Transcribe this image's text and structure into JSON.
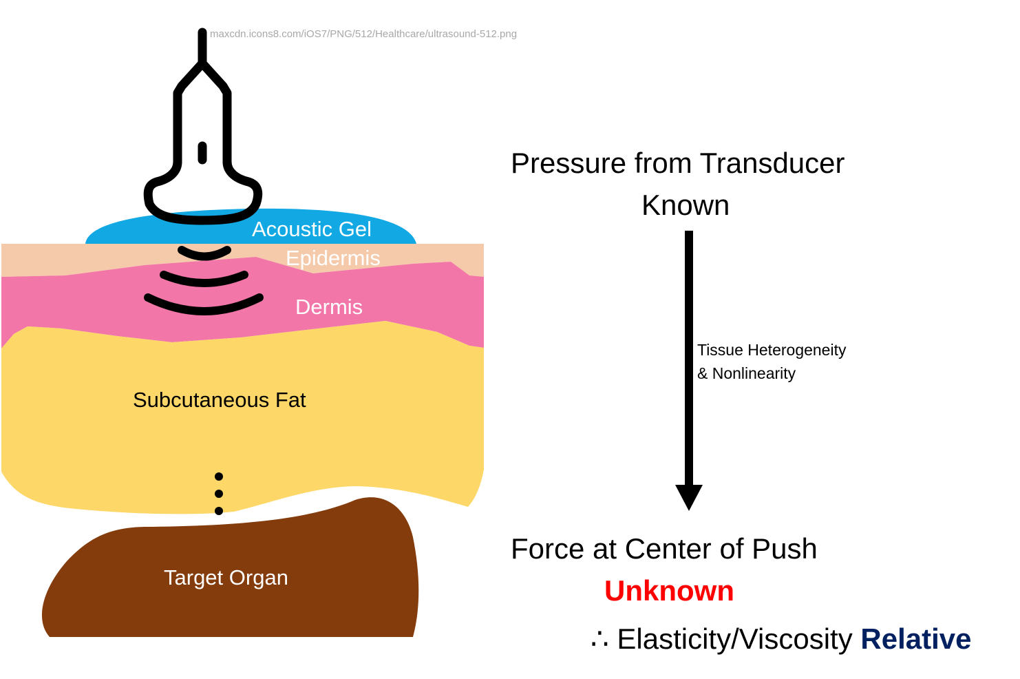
{
  "image_credit": "maxcdn.icons8.com/iOS7/PNG/512/Healthcare/ultrasound-512.png",
  "layers": {
    "acoustic_gel": "Acoustic Gel",
    "epidermis": "Epidermis",
    "dermis": "Dermis",
    "subcutaneous_fat": "Subcutaneous Fat",
    "target_organ": "Target Organ"
  },
  "pressure": {
    "title": "Pressure from Transducer",
    "status": "Known"
  },
  "arrow": {
    "label_line1": "Tissue Heterogeneity",
    "label_line2": "& Nonlinearity"
  },
  "force": {
    "title": "Force at Center of Push",
    "status": "Unknown"
  },
  "conclusion": {
    "prefix": "∴ Elasticity/Viscosity ",
    "emphasis": "Relative"
  },
  "icons": {
    "probe": "ultrasound-transducer-icon",
    "waves": "ultrasound-wave-icon",
    "continuation": "vertical-ellipsis-icon",
    "flow": "down-arrow-icon"
  },
  "colors": {
    "acoustic_gel": "#12A8E3",
    "epidermis": "#F5CAAB",
    "dermis": "#F276A7",
    "subcutaneous_fat": "#FDD767",
    "target_organ": "#843C0C",
    "unknown": "#FF0000",
    "relative": "#002060"
  }
}
